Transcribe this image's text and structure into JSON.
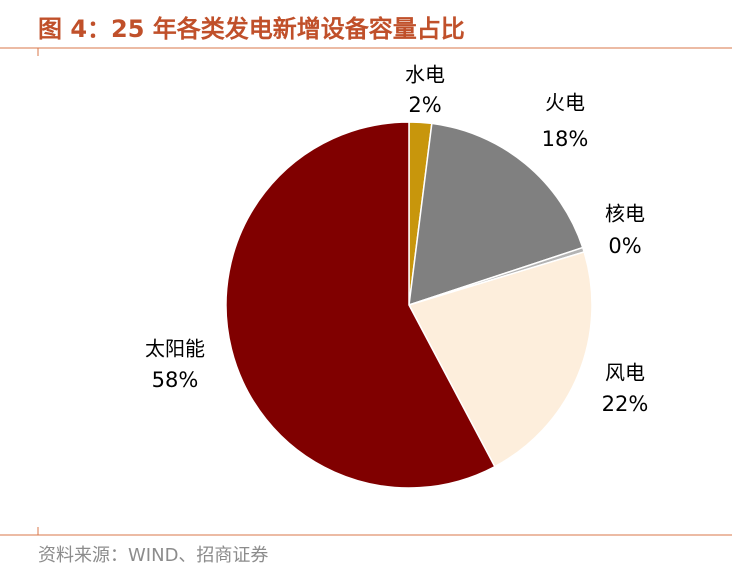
{
  "chart_data": {
    "type": "pie",
    "title": "图 4：25 年各类发电新增设备容量占比",
    "categories": [
      "水电",
      "火电",
      "核电",
      "风电",
      "太阳能"
    ],
    "values": [
      2,
      18,
      0.4,
      22,
      58
    ],
    "value_labels": [
      "2%",
      "18%",
      "0%",
      "22%",
      "58%"
    ],
    "colors": [
      "#c8960c",
      "#808080",
      "#b4b4b4",
      "#fdeedc",
      "#800000"
    ],
    "source": "资料来源：WIND、招商证券"
  }
}
